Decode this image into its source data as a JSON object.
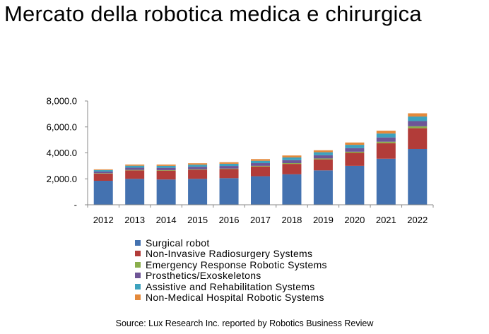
{
  "title": "Mercato della robotica medica e chirurgica",
  "source": "Source: Lux Research Inc. reported by  Robotics Business Review",
  "chart_data": {
    "type": "bar",
    "stacked": true,
    "categories": [
      "2012",
      "2013",
      "2014",
      "2015",
      "2016",
      "2017",
      "2018",
      "2019",
      "2020",
      "2021",
      "2022"
    ],
    "ylim": [
      0,
      8000
    ],
    "yticks": [
      0,
      2000,
      4000,
      6000,
      8000
    ],
    "ytick_labels": [
      "-",
      "2,000.0",
      "4,000.0",
      "6,000.0",
      "8,000.0"
    ],
    "grid": false,
    "legend_position": "bottom",
    "series": [
      {
        "name": "Surgical robot",
        "color": "#4472B0",
        "values": [
          1850,
          2000,
          1950,
          2000,
          2050,
          2200,
          2350,
          2650,
          3000,
          3550,
          4300
        ]
      },
      {
        "name": "Non-Invasive Radiosurgery Systems",
        "color": "#B23C39",
        "values": [
          550,
          650,
          680,
          700,
          700,
          750,
          800,
          850,
          1000,
          1200,
          1600
        ]
      },
      {
        "name": "Emergency Response Robotic Systems",
        "color": "#8AAE4C",
        "values": [
          30,
          40,
          40,
          40,
          40,
          50,
          60,
          70,
          90,
          110,
          150
        ]
      },
      {
        "name": "Prosthetics/Exoskeletons",
        "color": "#6E5596",
        "values": [
          130,
          170,
          180,
          190,
          200,
          210,
          230,
          250,
          280,
          330,
          400
        ]
      },
      {
        "name": "Assistive and Rehabilitation Systems",
        "color": "#3DA2BE",
        "values": [
          110,
          150,
          150,
          160,
          170,
          180,
          210,
          230,
          250,
          300,
          350
        ]
      },
      {
        "name": "Non-Medical Hospital Robotic Systems",
        "color": "#E4893B",
        "values": [
          60,
          90,
          100,
          110,
          120,
          130,
          150,
          150,
          180,
          220,
          250
        ]
      }
    ]
  }
}
